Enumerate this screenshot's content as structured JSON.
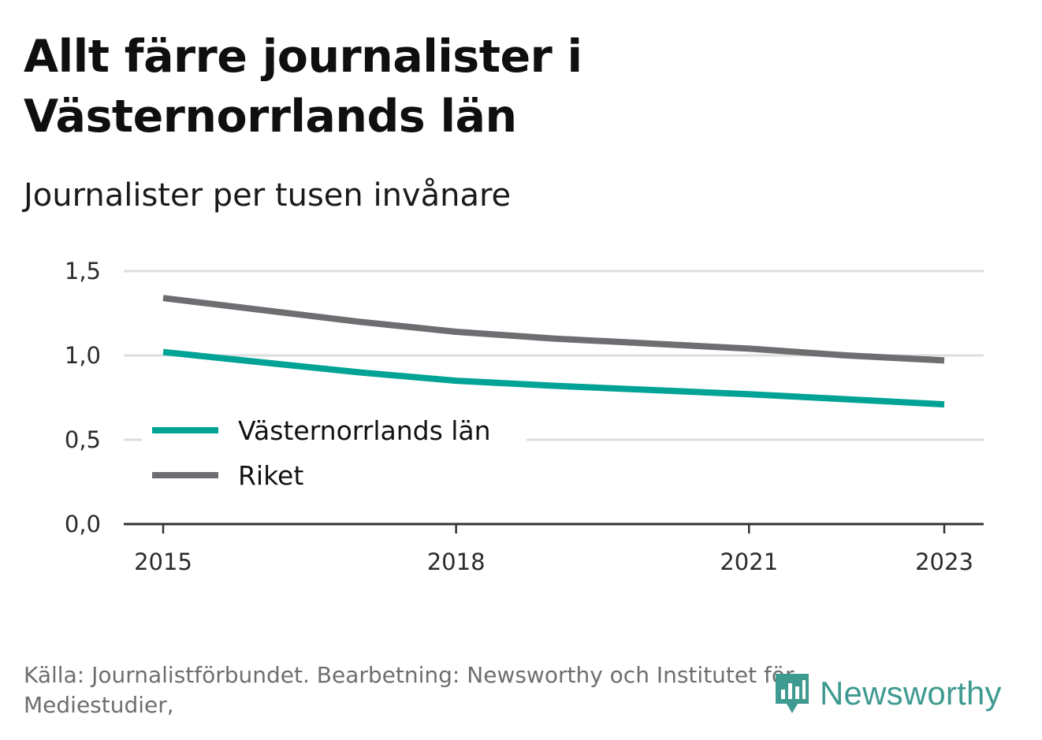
{
  "header": {
    "title": "Allt färre journalister i Västernorrlands län",
    "subtitle": "Journalister per tusen invånare"
  },
  "footer": {
    "source": "Källa: Journalistförbundet. Bearbetning: Newsworthy och Institutet för Mediestudier,",
    "logo_text": "Newsworthy"
  },
  "colors": {
    "accent": "#00a396",
    "grey": "#6d6d72",
    "grid": "#dddddd",
    "axis": "#333333",
    "logo": "#3f9a91"
  },
  "chart_data": {
    "type": "line",
    "title": "Allt färre journalister i Västernorrlands län",
    "subtitle": "Journalister per tusen invånare",
    "x": [
      2015,
      2016,
      2017,
      2018,
      2019,
      2020,
      2021,
      2022,
      2023
    ],
    "x_ticks": [
      "2015",
      "2018",
      "2021",
      "2023"
    ],
    "y_ticks": [
      "0,0",
      "0,5",
      "1,0",
      "1,5"
    ],
    "ylim": [
      0,
      1.5
    ],
    "grid": true,
    "legend_position": "bottom-left",
    "series": [
      {
        "name": "Västernorrlands län",
        "color": "#00a396",
        "values": [
          1.02,
          0.96,
          0.9,
          0.85,
          0.82,
          0.795,
          0.77,
          0.74,
          0.71
        ]
      },
      {
        "name": "Riket",
        "color": "#6d6d72",
        "values": [
          1.34,
          1.27,
          1.2,
          1.14,
          1.1,
          1.07,
          1.04,
          1.0,
          0.97
        ]
      }
    ]
  }
}
